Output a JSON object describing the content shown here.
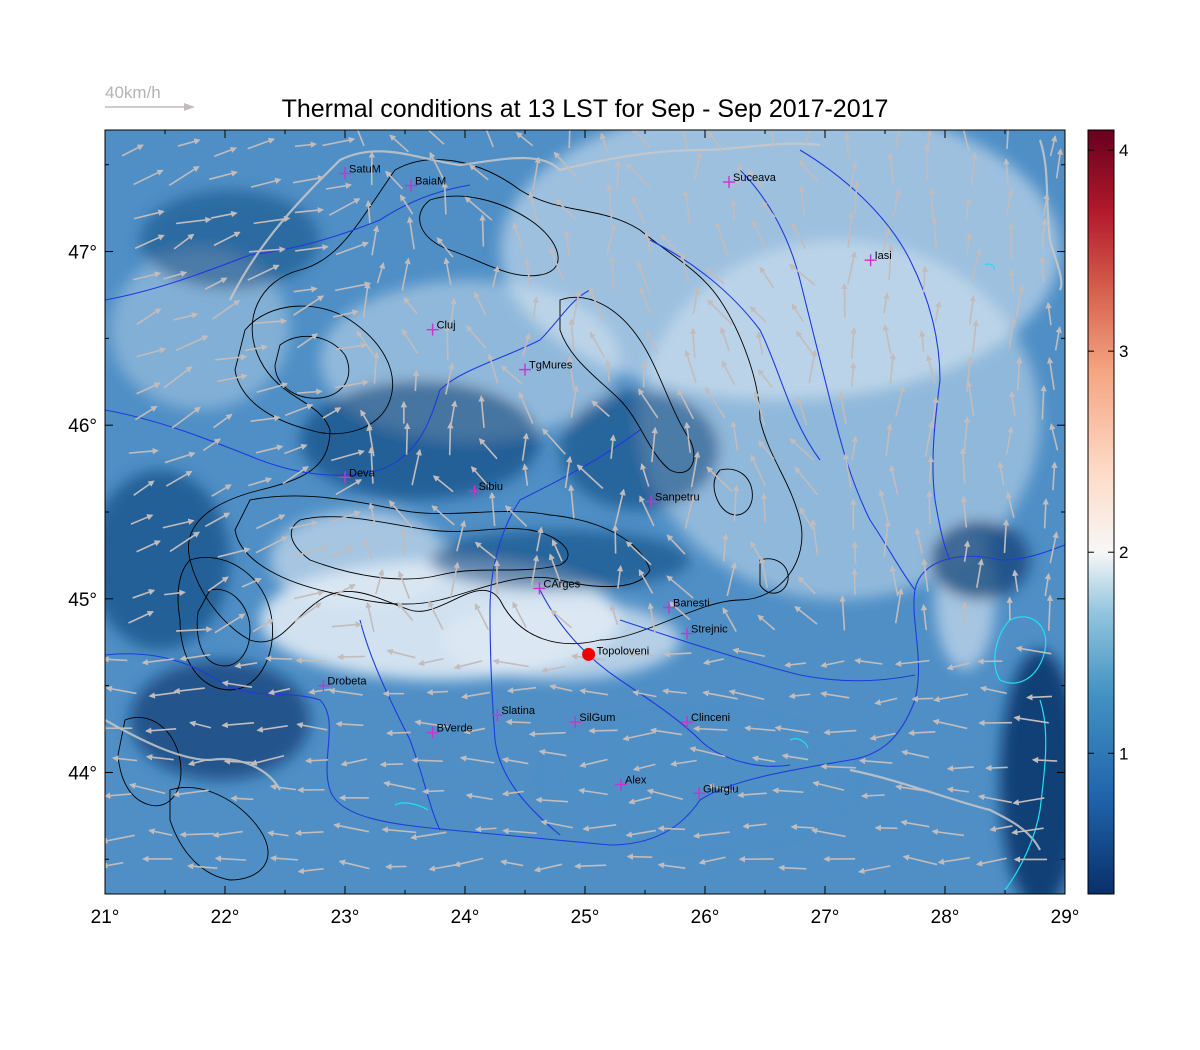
{
  "title": "Thermal conditions at 13 LST for Sep - Sep  2017-2017",
  "wind_legend": {
    "label": "40km/h"
  },
  "map": {
    "lon_range": [
      21,
      29
    ],
    "lat_range": [
      43.3,
      47.7
    ],
    "x_ticks": [
      {
        "value": 21,
        "label": "21°"
      },
      {
        "value": 22,
        "label": "22°"
      },
      {
        "value": 23,
        "label": "23°"
      },
      {
        "value": 24,
        "label": "24°"
      },
      {
        "value": 25,
        "label": "25°"
      },
      {
        "value": 26,
        "label": "26°"
      },
      {
        "value": 27,
        "label": "27°"
      },
      {
        "value": 28,
        "label": "28°"
      },
      {
        "value": 29,
        "label": "29°"
      }
    ],
    "y_ticks": [
      {
        "value": 44,
        "label": "44°"
      },
      {
        "value": 45,
        "label": "45°"
      },
      {
        "value": 46,
        "label": "46°"
      },
      {
        "value": 47,
        "label": "47°"
      }
    ],
    "colors": {
      "field_low": "#0a3d73",
      "field_mid": "#4f8fc6",
      "field_high": "#dfeaf4",
      "rivers": "#1f3bdc",
      "borders": "#c8c8c8",
      "contours": "#000000",
      "wind_arrows": "#c2bcbc",
      "cities": "#cc33cc",
      "highlight": "#ee0000"
    },
    "cities": [
      {
        "name": "SatuM",
        "lon": 23.0,
        "lat": 47.45
      },
      {
        "name": "BaiaM",
        "lon": 23.55,
        "lat": 47.38
      },
      {
        "name": "Suceava",
        "lon": 26.2,
        "lat": 47.4
      },
      {
        "name": "Iasi",
        "lon": 27.38,
        "lat": 46.95
      },
      {
        "name": "Cluj",
        "lon": 23.73,
        "lat": 46.55
      },
      {
        "name": "TgMures",
        "lon": 24.5,
        "lat": 46.32
      },
      {
        "name": "Deva",
        "lon": 23.0,
        "lat": 45.7
      },
      {
        "name": "Sibiu",
        "lon": 24.08,
        "lat": 45.62
      },
      {
        "name": "Sanpetru",
        "lon": 25.55,
        "lat": 45.56
      },
      {
        "name": "CArges",
        "lon": 24.62,
        "lat": 45.06
      },
      {
        "name": "Banesti",
        "lon": 25.7,
        "lat": 44.95
      },
      {
        "name": "Strejnic",
        "lon": 25.85,
        "lat": 44.8
      },
      {
        "name": "Drobeta",
        "lon": 22.82,
        "lat": 44.5
      },
      {
        "name": "Slatina",
        "lon": 24.27,
        "lat": 44.33
      },
      {
        "name": "SilGum",
        "lon": 24.92,
        "lat": 44.29
      },
      {
        "name": "Clinceni",
        "lon": 25.85,
        "lat": 44.29
      },
      {
        "name": "BVerde",
        "lon": 23.73,
        "lat": 44.23
      },
      {
        "name": "Alex",
        "lon": 25.3,
        "lat": 43.93
      },
      {
        "name": "Giurgiu",
        "lon": 25.95,
        "lat": 43.88
      }
    ],
    "highlight_point": {
      "name": "Topoloveni",
      "lon": 25.03,
      "lat": 44.68
    }
  },
  "colorbar": {
    "min": 0.3,
    "max": 4.1,
    "ticks": [
      {
        "value": 1,
        "label": "1"
      },
      {
        "value": 2,
        "label": "2"
      },
      {
        "value": 3,
        "label": "3"
      },
      {
        "value": 4,
        "label": "4"
      }
    ],
    "stops": [
      {
        "value": 0.3,
        "color": "#08306b"
      },
      {
        "value": 0.8,
        "color": "#2166ac"
      },
      {
        "value": 1.3,
        "color": "#4393c3"
      },
      {
        "value": 1.7,
        "color": "#92c5de"
      },
      {
        "value": 2.0,
        "color": "#f7f7f7"
      },
      {
        "value": 2.4,
        "color": "#fddbc7"
      },
      {
        "value": 2.9,
        "color": "#f4a582"
      },
      {
        "value": 3.3,
        "color": "#d6604d"
      },
      {
        "value": 3.7,
        "color": "#b2182b"
      },
      {
        "value": 4.1,
        "color": "#67001f"
      }
    ]
  }
}
